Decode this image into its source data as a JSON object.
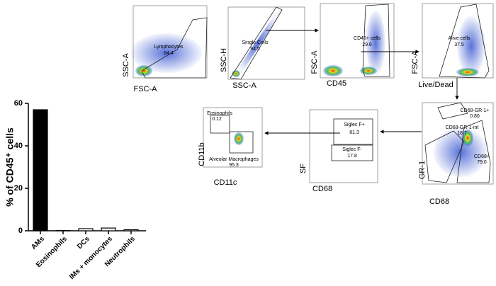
{
  "chart_data": {
    "type": "bar",
    "y_label": "% of CD45⁺ cells",
    "categories": [
      "AMs",
      "Eosinophils",
      "DCs",
      "IMs + monocytes",
      "Neutrophils"
    ],
    "values": [
      57,
      0.1,
      1,
      1.3,
      0.5
    ],
    "colors": [
      "#000000",
      "#ffffff",
      "#ffffff",
      "#ffffff",
      "#ffffff"
    ],
    "ylim": [
      0,
      60
    ],
    "yticks": [
      0,
      20,
      40,
      60
    ]
  },
  "gating": {
    "panels": [
      {
        "x_label": "FSC-A",
        "y_label": "SSC-A",
        "gates": [
          {
            "name": "Lymphocytes",
            "value": "64.4"
          }
        ]
      },
      {
        "x_label": "SSC-A",
        "y_label": "SSC-H",
        "gates": [
          {
            "name": "Single Cells",
            "value": "94.5"
          }
        ]
      },
      {
        "x_label": "CD45",
        "y_label": "FSC-A",
        "gates": [
          {
            "name": "CD45+ cells",
            "value": "29.6"
          }
        ]
      },
      {
        "x_label": "Live/Dead",
        "y_label": "FSC-A",
        "gates": [
          {
            "name": "Alive cells",
            "value": "37.5"
          }
        ]
      },
      {
        "x_label": "CD68",
        "y_label": "GR-1",
        "gates": [
          {
            "name": "CD68-GR-1+",
            "value": "0.80"
          },
          {
            "name": "CD68-GR-1-int",
            "value": "18.7"
          },
          {
            "name": "CD68+",
            "value": "79.0"
          }
        ]
      },
      {
        "x_label": "CD68",
        "y_label": "SF",
        "gates": [
          {
            "name": "Siglec F+",
            "value": "81.3"
          },
          {
            "name": "Siglec F-",
            "value": "17.8"
          }
        ]
      },
      {
        "x_label": "CD11c",
        "y_label": "CD11b",
        "gates": [
          {
            "name": "Eosinophils",
            "value": "0.12"
          },
          {
            "name": "Alveolar Macrophages",
            "value": "95.3"
          }
        ]
      }
    ]
  }
}
